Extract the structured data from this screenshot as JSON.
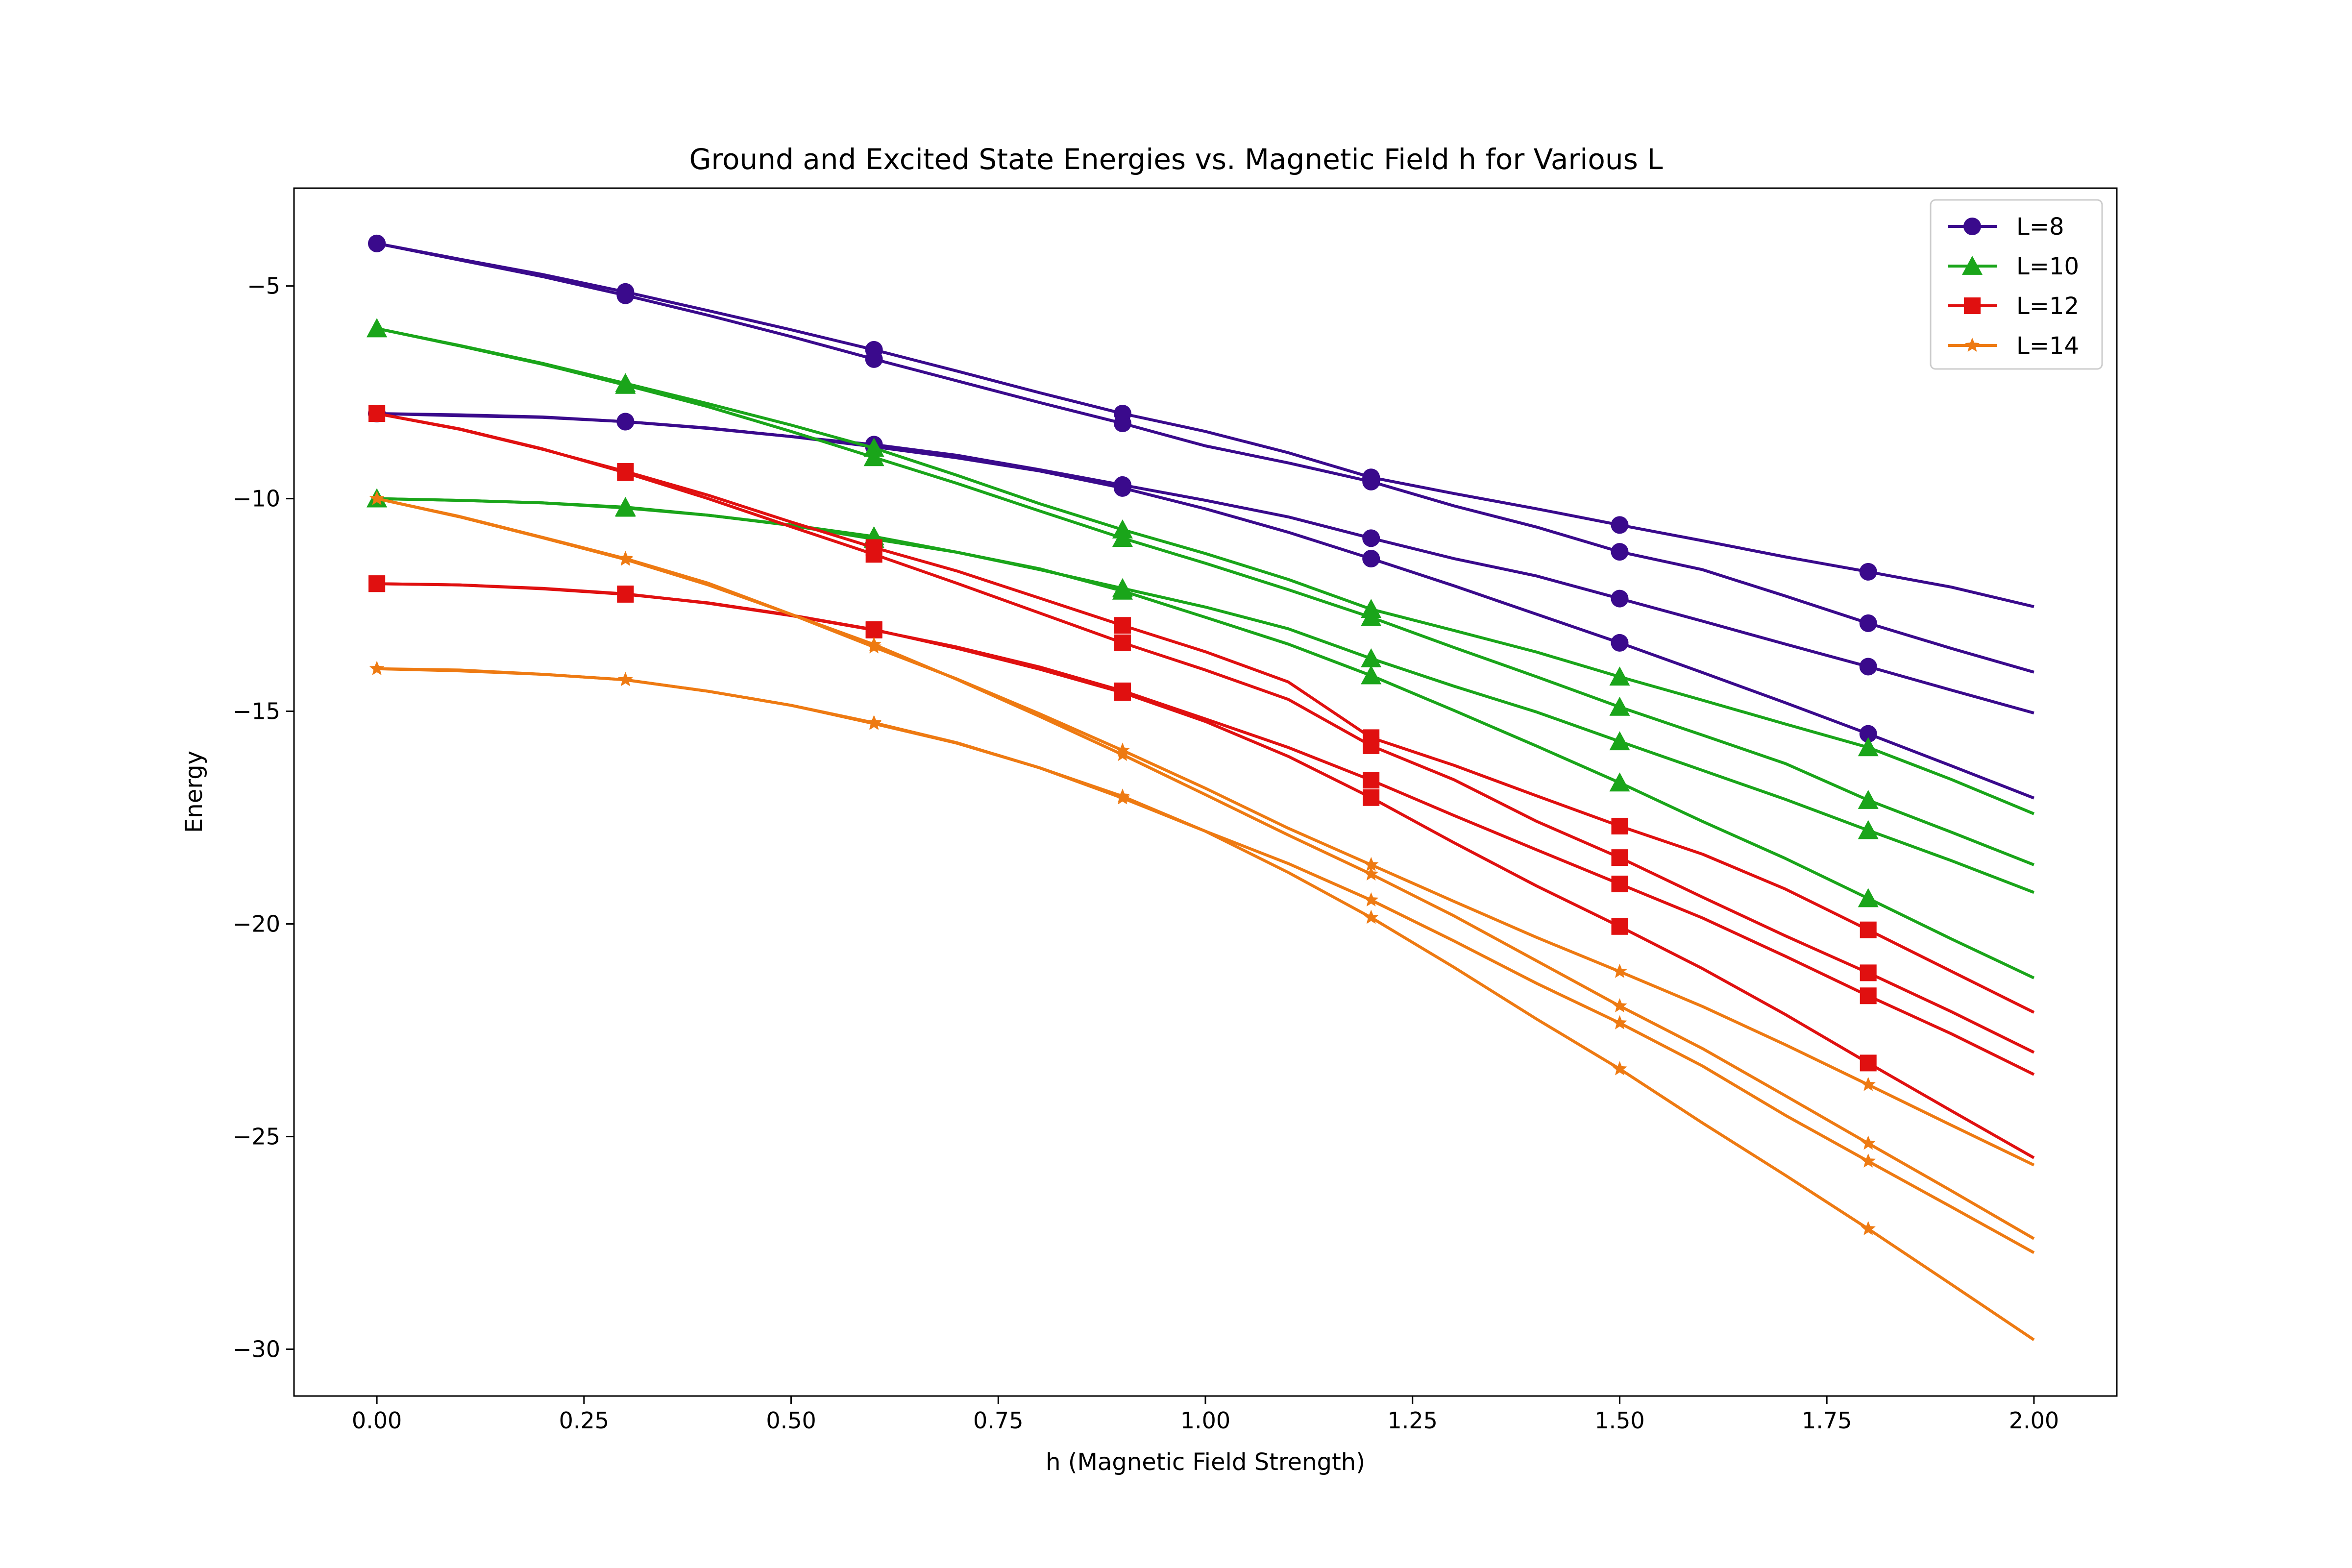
{
  "chart_data": {
    "type": "line",
    "title": "Ground and Excited State Energies vs. Magnetic Field h for Various L",
    "xlabel": "h (Magnetic Field Strength)",
    "ylabel": "Energy",
    "xlim": [
      -0.1,
      2.1
    ],
    "ylim": [
      -31.1,
      -2.7
    ],
    "xticks": [
      0.0,
      0.25,
      0.5,
      0.75,
      1.0,
      1.25,
      1.5,
      1.75,
      2.0
    ],
    "xtick_labels": [
      "0.00",
      "0.25",
      "0.50",
      "0.75",
      "1.00",
      "1.25",
      "1.50",
      "1.75",
      "2.00"
    ],
    "yticks": [
      -5,
      -10,
      -15,
      -20,
      -25,
      -30
    ],
    "ytick_labels": [
      "−5",
      "−10",
      "−15",
      "−20",
      "−25",
      "−30"
    ],
    "grid": false,
    "legend_position": "top-right",
    "x": [
      0.0,
      0.1,
      0.2,
      0.3,
      0.4,
      0.5,
      0.6,
      0.7,
      0.8,
      0.9,
      1.0,
      1.1,
      1.2,
      1.3,
      1.4,
      1.5,
      1.6,
      1.7,
      1.8,
      1.9,
      2.0
    ],
    "marker_x": [
      0.0,
      0.3,
      0.6,
      0.9,
      1.2,
      1.5,
      1.8
    ],
    "groups": [
      {
        "name": "L=8",
        "color": "#3a0a8c",
        "marker": "circle",
        "curves": [
          [
            -4.0,
            -4.37,
            -4.73,
            -5.14,
            -5.58,
            -6.03,
            -6.5,
            -7.0,
            -7.51,
            -8.0,
            -8.42,
            -8.92,
            -9.5,
            -9.88,
            -10.24,
            -10.62,
            -10.99,
            -11.37,
            -11.72,
            -12.08,
            -12.54
          ],
          [
            -4.0,
            -4.39,
            -4.78,
            -5.22,
            -5.69,
            -6.19,
            -6.72,
            -7.23,
            -7.74,
            -8.23,
            -8.76,
            -9.16,
            -9.6,
            -10.17,
            -10.67,
            -11.25,
            -11.67,
            -12.29,
            -12.93,
            -13.52,
            -14.08
          ],
          [
            -8.0,
            -8.03,
            -8.08,
            -8.19,
            -8.35,
            -8.54,
            -8.73,
            -8.98,
            -9.32,
            -9.68,
            -10.04,
            -10.43,
            -10.93,
            -11.41,
            -11.82,
            -12.35,
            -12.88,
            -13.42,
            -13.95,
            -14.5,
            -15.04
          ],
          [
            -8.0,
            -8.05,
            -8.09,
            -8.19,
            -8.34,
            -8.54,
            -8.78,
            -9.04,
            -9.35,
            -9.75,
            -10.24,
            -10.79,
            -11.41,
            -12.05,
            -12.72,
            -13.39,
            -14.09,
            -14.8,
            -15.53,
            -16.28,
            -17.04
          ]
        ]
      },
      {
        "name": "L=10",
        "color": "#1aa51a",
        "marker": "triangle",
        "curves": [
          [
            -6.0,
            -6.4,
            -6.82,
            -7.29,
            -7.77,
            -8.27,
            -8.81,
            -9.45,
            -10.12,
            -10.73,
            -11.29,
            -11.9,
            -12.6,
            -13.1,
            -13.61,
            -14.19,
            -14.74,
            -15.3,
            -15.85,
            -16.6,
            -17.41
          ],
          [
            -6.0,
            -6.41,
            -6.84,
            -7.33,
            -7.84,
            -8.42,
            -9.03,
            -9.64,
            -10.29,
            -10.93,
            -11.52,
            -12.14,
            -12.79,
            -13.5,
            -14.19,
            -14.9,
            -15.56,
            -16.23,
            -17.09,
            -17.84,
            -18.61
          ],
          [
            -10.0,
            -10.04,
            -10.1,
            -10.22,
            -10.39,
            -10.62,
            -10.89,
            -11.26,
            -11.67,
            -12.11,
            -12.55,
            -13.06,
            -13.76,
            -14.41,
            -15.02,
            -15.71,
            -16.39,
            -17.07,
            -17.8,
            -18.51,
            -19.26
          ],
          [
            -10.0,
            -10.04,
            -10.1,
            -10.2,
            -10.39,
            -10.63,
            -10.95,
            -11.26,
            -11.65,
            -12.17,
            -12.79,
            -13.42,
            -14.16,
            -14.98,
            -15.82,
            -16.68,
            -17.59,
            -18.46,
            -19.4,
            -20.35,
            -21.27
          ]
        ]
      },
      {
        "name": "L=12",
        "color": "#e01010",
        "marker": "square",
        "curves": [
          [
            -8.0,
            -8.37,
            -8.84,
            -9.36,
            -9.92,
            -10.55,
            -11.15,
            -11.7,
            -12.34,
            -12.98,
            -13.6,
            -14.31,
            -15.62,
            -16.27,
            -16.99,
            -17.7,
            -18.36,
            -19.18,
            -20.14,
            -21.11,
            -22.08
          ],
          [
            -8.0,
            -8.36,
            -8.83,
            -9.39,
            -10.0,
            -10.66,
            -11.31,
            -11.99,
            -12.69,
            -13.39,
            -14.03,
            -14.72,
            -15.81,
            -16.61,
            -17.59,
            -18.44,
            -19.37,
            -20.28,
            -21.15,
            -22.06,
            -23.02
          ],
          [
            -12.0,
            -12.03,
            -12.11,
            -12.24,
            -12.46,
            -12.75,
            -13.09,
            -13.49,
            -13.96,
            -14.52,
            -15.18,
            -15.85,
            -16.62,
            -17.45,
            -18.26,
            -19.06,
            -19.86,
            -20.76,
            -21.69,
            -22.58,
            -23.54
          ],
          [
            -12.0,
            -12.03,
            -12.12,
            -12.25,
            -12.45,
            -12.74,
            -13.08,
            -13.52,
            -14.01,
            -14.56,
            -15.24,
            -16.06,
            -17.03,
            -18.09,
            -19.11,
            -20.06,
            -21.05,
            -22.13,
            -23.27,
            -24.39,
            -25.5
          ]
        ]
      },
      {
        "name": "L=14",
        "color": "#ee7a12",
        "marker": "star",
        "curves": [
          [
            -10.0,
            -10.43,
            -10.92,
            -11.43,
            -12.03,
            -12.72,
            -13.49,
            -14.24,
            -15.06,
            -15.92,
            -16.81,
            -17.75,
            -18.61,
            -19.47,
            -20.32,
            -21.12,
            -21.94,
            -22.84,
            -23.78,
            -24.73,
            -25.67
          ],
          [
            -10.0,
            -10.42,
            -10.91,
            -11.41,
            -11.99,
            -12.72,
            -13.43,
            -14.25,
            -15.12,
            -16.02,
            -16.96,
            -17.91,
            -18.83,
            -19.81,
            -20.87,
            -21.93,
            -22.93,
            -24.04,
            -25.16,
            -26.27,
            -27.4
          ],
          [
            -14.0,
            -14.05,
            -14.13,
            -14.26,
            -14.53,
            -14.86,
            -15.27,
            -15.74,
            -16.33,
            -17.04,
            -17.82,
            -18.58,
            -19.44,
            -20.4,
            -21.4,
            -22.33,
            -23.34,
            -24.5,
            -25.58,
            -26.65,
            -27.73
          ],
          [
            -14.0,
            -14.03,
            -14.13,
            -14.26,
            -14.53,
            -14.86,
            -15.29,
            -15.75,
            -16.33,
            -17.0,
            -17.82,
            -18.79,
            -19.85,
            -21.02,
            -22.24,
            -23.41,
            -24.68,
            -25.91,
            -27.17,
            -28.47,
            -29.78
          ]
        ]
      }
    ]
  }
}
